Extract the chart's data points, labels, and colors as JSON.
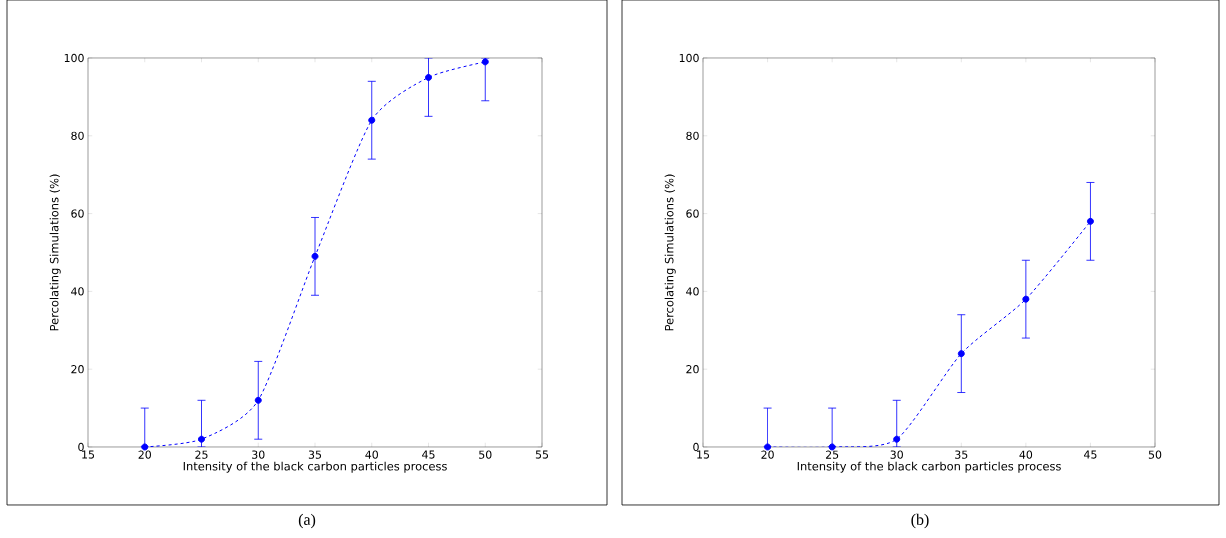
{
  "chart_data": [
    {
      "type": "line",
      "xlabel": "Intensity of the black carbon particles process",
      "ylabel": "Percolating Simulations (%)",
      "annotations": [
        "(a)"
      ],
      "x": [
        20,
        25,
        30,
        35,
        40,
        45,
        50
      ],
      "values": [
        0,
        2,
        12,
        49,
        84,
        95,
        99
      ],
      "errors": [
        [
          0,
          10
        ],
        [
          0,
          12
        ],
        [
          2,
          22
        ],
        [
          39,
          59
        ],
        [
          74,
          94
        ],
        [
          85,
          100
        ],
        [
          89,
          100
        ]
      ],
      "color": "#0000ff",
      "marker": "circle",
      "line_style": "dashed",
      "xlim": [
        15,
        55
      ],
      "xticks": [
        15,
        20,
        25,
        30,
        35,
        40,
        45,
        50,
        55
      ],
      "ylim": [
        0,
        100
      ],
      "yticks": [
        0,
        20,
        40,
        60,
        80,
        100
      ]
    },
    {
      "type": "line",
      "xlabel": "Intensity of the black carbon particles process",
      "ylabel": "Percolating Simulations (%)",
      "annotations": [
        "(b)"
      ],
      "x": [
        20,
        25,
        30,
        35,
        40,
        45
      ],
      "values": [
        0,
        0,
        2,
        24,
        38,
        58
      ],
      "errors": [
        [
          0,
          10
        ],
        [
          0,
          10
        ],
        [
          0,
          12
        ],
        [
          14,
          34
        ],
        [
          28,
          48
        ],
        [
          48,
          68
        ]
      ],
      "color": "#0000ff",
      "marker": "circle",
      "line_style": "dashed",
      "xlim": [
        15,
        50
      ],
      "xticks": [
        15,
        20,
        25,
        30,
        35,
        40,
        45,
        50
      ],
      "ylim": [
        0,
        100
      ],
      "yticks": [
        0,
        20,
        40,
        60,
        80,
        100
      ]
    }
  ]
}
